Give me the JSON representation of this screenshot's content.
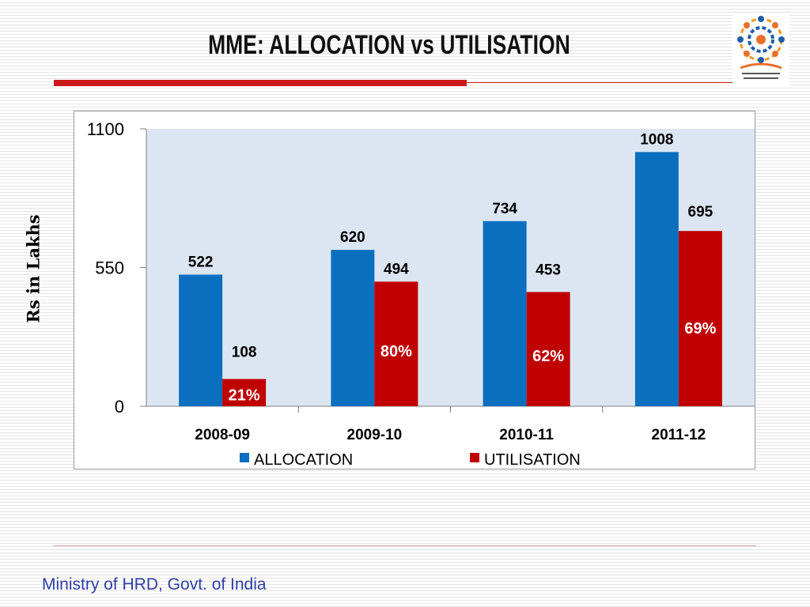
{
  "slide": {
    "title": "MME: ALLOCATION vs UTILISATION",
    "footer": "Ministry of HRD, Govt. of India",
    "logo_icon": "mid-day-meal-scheme-logo",
    "accent_color": "#cc1a1a"
  },
  "chart_data": {
    "type": "bar",
    "title": "",
    "xlabel": "",
    "ylabel": "Rs in Lakhs",
    "ylim": [
      0,
      1100
    ],
    "yticks": [
      "0",
      "550",
      "1100"
    ],
    "categories": [
      "2008-09",
      "2009-10",
      "2010-11",
      "2011-12"
    ],
    "series": [
      {
        "name": "ALLOCATION",
        "color": "#0b6fc0",
        "values": [
          522,
          620,
          734,
          1008
        ]
      },
      {
        "name": "UTILISATION",
        "color": "#c00000",
        "values": [
          108,
          494,
          453,
          695
        ]
      }
    ],
    "utilisation_percent_labels": [
      "21%",
      "80%",
      "62%",
      "69%"
    ],
    "legend_position": "bottom",
    "plot_background": "#dce6f2",
    "grid": false
  }
}
